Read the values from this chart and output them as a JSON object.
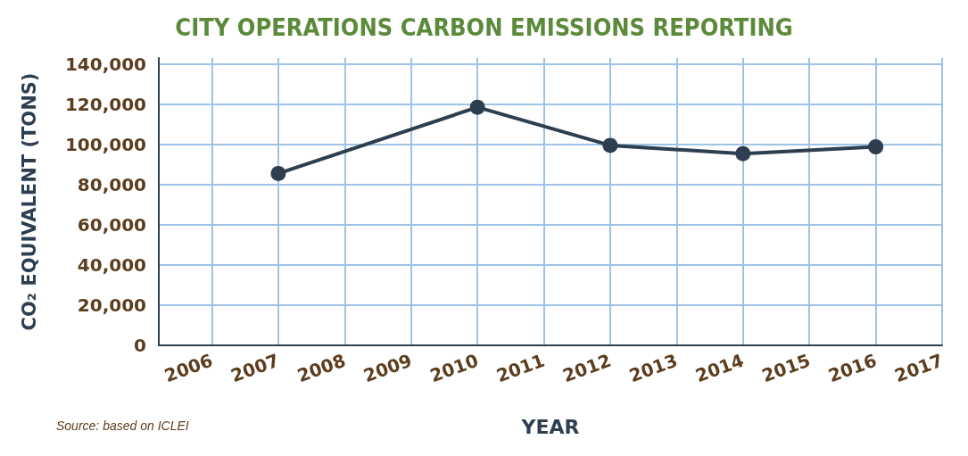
{
  "chart_data": {
    "type": "line",
    "title": "CITY OPERATIONS CARBON EMISSIONS REPORTING",
    "xlabel": "YEAR",
    "ylabel": "CO₂ EQUIVALENT (TONS)",
    "annotations": [
      "Source: based on ICLEI"
    ],
    "x": [
      2007,
      2010,
      2012,
      2014,
      2016
    ],
    "series": [
      {
        "color": "#2d3e50",
        "values": [
          85500,
          118500,
          99500,
          95400,
          98800
        ]
      }
    ],
    "xlim": [
      2005.2,
      2017
    ],
    "xticks": [
      2006,
      2007,
      2008,
      2009,
      2010,
      2011,
      2012,
      2013,
      2014,
      2015,
      2016,
      2017
    ],
    "ylim": [
      0,
      143000
    ],
    "yticks": [
      {
        "value": 0,
        "label": "0"
      },
      {
        "value": 20000,
        "label": "20,000"
      },
      {
        "value": 40000,
        "label": "40,000"
      },
      {
        "value": 60000,
        "label": "60,000"
      },
      {
        "value": 80000,
        "label": "80,000"
      },
      {
        "value": 100000,
        "label": "100,000"
      },
      {
        "value": 120000,
        "label": "120,000"
      },
      {
        "value": 140000,
        "label": "140,000"
      }
    ],
    "grid": true,
    "marker": "circle",
    "line_style": "solid"
  }
}
